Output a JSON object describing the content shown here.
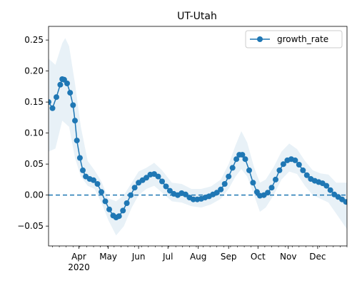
{
  "chart_data": {
    "type": "line",
    "title": "UT-Utah",
    "xlabel": "",
    "ylabel": "",
    "xlim": [
      "2020-03-01",
      "2020-12-31"
    ],
    "ylim": [
      -0.082,
      0.272
    ],
    "yticks": [
      -0.05,
      0.0,
      0.05,
      0.1,
      0.15,
      0.2,
      0.25
    ],
    "ytick_labels": [
      "−0.05",
      "0.00",
      "0.05",
      "0.10",
      "0.15",
      "0.20",
      "0.25"
    ],
    "xticks": [
      {
        "date": "2020-04-01",
        "label": "Apr",
        "sublabel": "2020"
      },
      {
        "date": "2020-05-01",
        "label": "May"
      },
      {
        "date": "2020-06-01",
        "label": "Jun"
      },
      {
        "date": "2020-07-01",
        "label": "Jul"
      },
      {
        "date": "2020-08-01",
        "label": "Aug"
      },
      {
        "date": "2020-09-01",
        "label": "Sep"
      },
      {
        "date": "2020-10-01",
        "label": "Oct"
      },
      {
        "date": "2020-11-01",
        "label": "Nov"
      },
      {
        "date": "2020-12-01",
        "label": "Dec"
      }
    ],
    "grid": false,
    "legend_position": "top-right",
    "reference_line": {
      "y": 0.0,
      "style": "dashed",
      "color": "#1f77b4"
    },
    "series": [
      {
        "name": "growth_rate",
        "color": "#1f77b4",
        "marker": "circle",
        "points": [
          [
            "2020-03-01",
            0.15
          ],
          [
            "2020-03-05",
            0.14
          ],
          [
            "2020-03-09",
            0.158
          ],
          [
            "2020-03-13",
            0.178
          ],
          [
            "2020-03-15",
            0.187
          ],
          [
            "2020-03-17",
            0.186
          ],
          [
            "2020-03-20",
            0.18
          ],
          [
            "2020-03-23",
            0.165
          ],
          [
            "2020-03-26",
            0.145
          ],
          [
            "2020-03-28",
            0.12
          ],
          [
            "2020-03-30",
            0.088
          ],
          [
            "2020-04-02",
            0.06
          ],
          [
            "2020-04-05",
            0.04
          ],
          [
            "2020-04-08",
            0.03
          ],
          [
            "2020-04-12",
            0.026
          ],
          [
            "2020-04-16",
            0.024
          ],
          [
            "2020-04-20",
            0.018
          ],
          [
            "2020-04-24",
            0.005
          ],
          [
            "2020-04-28",
            -0.01
          ],
          [
            "2020-05-02",
            -0.023
          ],
          [
            "2020-05-06",
            -0.033
          ],
          [
            "2020-05-09",
            -0.036
          ],
          [
            "2020-05-12",
            -0.034
          ],
          [
            "2020-05-16",
            -0.025
          ],
          [
            "2020-05-20",
            -0.013
          ],
          [
            "2020-05-24",
            0.0
          ],
          [
            "2020-05-28",
            0.012
          ],
          [
            "2020-06-01",
            0.02
          ],
          [
            "2020-06-05",
            0.024
          ],
          [
            "2020-06-09",
            0.028
          ],
          [
            "2020-06-13",
            0.033
          ],
          [
            "2020-06-17",
            0.034
          ],
          [
            "2020-06-21",
            0.03
          ],
          [
            "2020-06-25",
            0.022
          ],
          [
            "2020-06-29",
            0.014
          ],
          [
            "2020-07-03",
            0.007
          ],
          [
            "2020-07-07",
            0.002
          ],
          [
            "2020-07-11",
            0.0
          ],
          [
            "2020-07-15",
            0.003
          ],
          [
            "2020-07-19",
            0.001
          ],
          [
            "2020-07-23",
            -0.004
          ],
          [
            "2020-07-27",
            -0.007
          ],
          [
            "2020-07-31",
            -0.007
          ],
          [
            "2020-08-04",
            -0.006
          ],
          [
            "2020-08-08",
            -0.004
          ],
          [
            "2020-08-12",
            -0.002
          ],
          [
            "2020-08-16",
            0.001
          ],
          [
            "2020-08-20",
            0.004
          ],
          [
            "2020-08-24",
            0.009
          ],
          [
            "2020-08-28",
            0.018
          ],
          [
            "2020-09-01",
            0.03
          ],
          [
            "2020-09-05",
            0.044
          ],
          [
            "2020-09-09",
            0.058
          ],
          [
            "2020-09-12",
            0.065
          ],
          [
            "2020-09-15",
            0.065
          ],
          [
            "2020-09-18",
            0.058
          ],
          [
            "2020-09-22",
            0.04
          ],
          [
            "2020-09-26",
            0.02
          ],
          [
            "2020-09-30",
            0.005
          ],
          [
            "2020-10-03",
            -0.001
          ],
          [
            "2020-10-07",
            0.0
          ],
          [
            "2020-10-11",
            0.004
          ],
          [
            "2020-10-15",
            0.012
          ],
          [
            "2020-10-19",
            0.025
          ],
          [
            "2020-10-23",
            0.04
          ],
          [
            "2020-10-27",
            0.05
          ],
          [
            "2020-10-31",
            0.056
          ],
          [
            "2020-11-04",
            0.058
          ],
          [
            "2020-11-08",
            0.056
          ],
          [
            "2020-11-12",
            0.049
          ],
          [
            "2020-11-16",
            0.04
          ],
          [
            "2020-11-20",
            0.032
          ],
          [
            "2020-11-24",
            0.026
          ],
          [
            "2020-11-28",
            0.023
          ],
          [
            "2020-12-02",
            0.021
          ],
          [
            "2020-12-06",
            0.019
          ],
          [
            "2020-12-10",
            0.015
          ],
          [
            "2020-12-14",
            0.008
          ],
          [
            "2020-12-18",
            0.001
          ],
          [
            "2020-12-22",
            -0.003
          ],
          [
            "2020-12-26",
            -0.007
          ],
          [
            "2020-12-30",
            -0.011
          ]
        ],
        "band_lower": [
          [
            "2020-03-01",
            0.07
          ],
          [
            "2020-03-08",
            0.075
          ],
          [
            "2020-03-15",
            0.12
          ],
          [
            "2020-03-22",
            0.11
          ],
          [
            "2020-03-28",
            0.06
          ],
          [
            "2020-04-03",
            0.03
          ],
          [
            "2020-04-10",
            0.015
          ],
          [
            "2020-04-17",
            0.01
          ],
          [
            "2020-04-24",
            -0.012
          ],
          [
            "2020-05-01",
            -0.04
          ],
          [
            "2020-05-09",
            -0.065
          ],
          [
            "2020-05-17",
            -0.05
          ],
          [
            "2020-05-25",
            -0.02
          ],
          [
            "2020-06-01",
            0.0
          ],
          [
            "2020-06-09",
            0.01
          ],
          [
            "2020-06-17",
            0.015
          ],
          [
            "2020-06-25",
            0.004
          ],
          [
            "2020-07-05",
            -0.01
          ],
          [
            "2020-07-15",
            -0.012
          ],
          [
            "2020-07-25",
            -0.018
          ],
          [
            "2020-08-04",
            -0.02
          ],
          [
            "2020-08-14",
            -0.015
          ],
          [
            "2020-08-24",
            -0.006
          ],
          [
            "2020-09-01",
            0.01
          ],
          [
            "2020-09-08",
            0.03
          ],
          [
            "2020-09-14",
            0.042
          ],
          [
            "2020-09-20",
            0.03
          ],
          [
            "2020-09-27",
            0.0
          ],
          [
            "2020-10-03",
            -0.027
          ],
          [
            "2020-10-09",
            -0.02
          ],
          [
            "2020-10-17",
            0.0
          ],
          [
            "2020-10-25",
            0.025
          ],
          [
            "2020-11-02",
            0.038
          ],
          [
            "2020-11-10",
            0.034
          ],
          [
            "2020-11-18",
            0.015
          ],
          [
            "2020-11-26",
            0.0
          ],
          [
            "2020-12-04",
            -0.006
          ],
          [
            "2020-12-12",
            -0.012
          ],
          [
            "2020-12-20",
            -0.03
          ],
          [
            "2020-12-31",
            -0.055
          ]
        ],
        "band_upper": [
          [
            "2020-03-01",
            0.22
          ],
          [
            "2020-03-08",
            0.21
          ],
          [
            "2020-03-15",
            0.245
          ],
          [
            "2020-03-18",
            0.253
          ],
          [
            "2020-03-22",
            0.24
          ],
          [
            "2020-03-28",
            0.18
          ],
          [
            "2020-04-03",
            0.11
          ],
          [
            "2020-04-10",
            0.055
          ],
          [
            "2020-04-17",
            0.04
          ],
          [
            "2020-04-24",
            0.022
          ],
          [
            "2020-05-01",
            -0.005
          ],
          [
            "2020-05-09",
            -0.01
          ],
          [
            "2020-05-17",
            0.0
          ],
          [
            "2020-05-25",
            0.02
          ],
          [
            "2020-06-01",
            0.038
          ],
          [
            "2020-06-09",
            0.044
          ],
          [
            "2020-06-17",
            0.052
          ],
          [
            "2020-06-25",
            0.04
          ],
          [
            "2020-07-05",
            0.02
          ],
          [
            "2020-07-15",
            0.018
          ],
          [
            "2020-07-25",
            0.01
          ],
          [
            "2020-08-04",
            0.01
          ],
          [
            "2020-08-14",
            0.014
          ],
          [
            "2020-08-24",
            0.025
          ],
          [
            "2020-09-01",
            0.05
          ],
          [
            "2020-09-08",
            0.08
          ],
          [
            "2020-09-14",
            0.103
          ],
          [
            "2020-09-20",
            0.085
          ],
          [
            "2020-09-27",
            0.045
          ],
          [
            "2020-10-03",
            0.02
          ],
          [
            "2020-10-09",
            0.025
          ],
          [
            "2020-10-17",
            0.045
          ],
          [
            "2020-10-25",
            0.07
          ],
          [
            "2020-11-02",
            0.083
          ],
          [
            "2020-11-10",
            0.074
          ],
          [
            "2020-11-18",
            0.055
          ],
          [
            "2020-11-26",
            0.04
          ],
          [
            "2020-12-04",
            0.035
          ],
          [
            "2020-12-12",
            0.033
          ],
          [
            "2020-12-20",
            0.02
          ],
          [
            "2020-12-31",
            0.02
          ]
        ]
      }
    ]
  }
}
